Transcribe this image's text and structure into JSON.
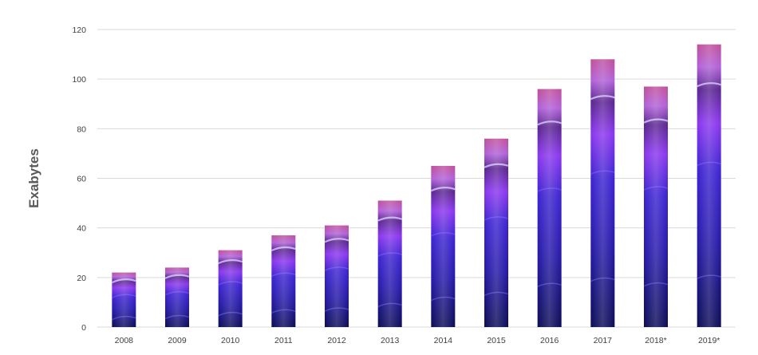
{
  "chart_data": {
    "type": "bar",
    "title": "",
    "xlabel": "",
    "ylabel": "Exabytes",
    "categories": [
      "2008",
      "2009",
      "2010",
      "2011",
      "2012",
      "2013",
      "2014",
      "2015",
      "2016",
      "2017",
      "2018*",
      "2019*"
    ],
    "values": [
      22,
      24,
      31,
      37,
      41,
      51,
      65,
      76,
      96,
      108,
      97,
      114
    ],
    "ylim": [
      0,
      120
    ],
    "yticks": [
      0,
      20,
      40,
      60,
      80,
      100,
      120
    ],
    "grid": true,
    "legend": "none",
    "colors": {
      "bar_bottom": "#0b0c57",
      "bar_lower": "#2418a8",
      "bar_mid": "#5a2be0",
      "bar_upper": "#9b3cf0",
      "bar_top": "#c04fb0",
      "highlight": "#c9c6ff",
      "gridline": "#d9d9d9"
    }
  }
}
